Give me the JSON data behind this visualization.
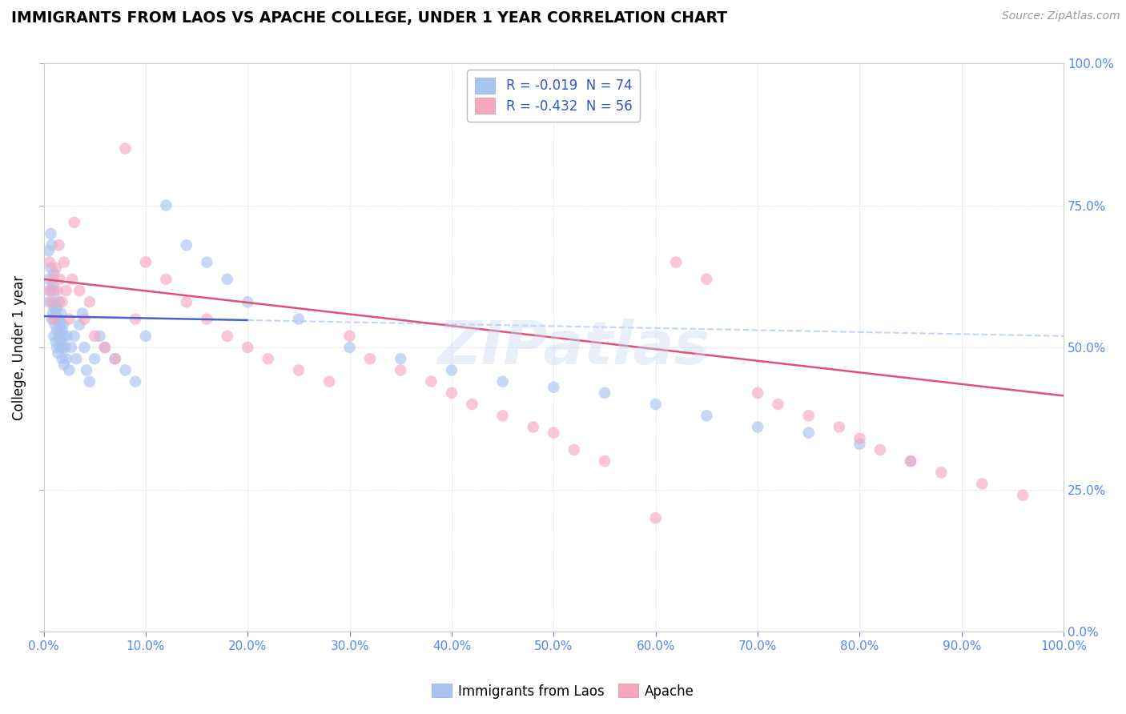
{
  "title": "IMMIGRANTS FROM LAOS VS APACHE COLLEGE, UNDER 1 YEAR CORRELATION CHART",
  "source": "Source: ZipAtlas.com",
  "ylabel": "College, Under 1 year",
  "legend_label1": "Immigrants from Laos",
  "legend_label2": "Apache",
  "r1": -0.019,
  "n1": 74,
  "r2": -0.432,
  "n2": 56,
  "color1": "#a8c4f0",
  "color2": "#f5a8c0",
  "trend_color1": "#4466cc",
  "trend_color2": "#e0507a",
  "trend_dash_color1": "#a8c4f0",
  "watermark": "ZIPatlas",
  "xlim": [
    0.0,
    1.0
  ],
  "ylim": [
    0.0,
    1.0
  ],
  "xticks": [
    0.0,
    0.1,
    0.2,
    0.3,
    0.4,
    0.5,
    0.6,
    0.7,
    0.8,
    0.9,
    1.0
  ],
  "yticks": [
    0.0,
    0.25,
    0.5,
    0.75,
    1.0
  ],
  "scatter1_x": [
    0.005,
    0.005,
    0.005,
    0.007,
    0.007,
    0.007,
    0.008,
    0.008,
    0.009,
    0.009,
    0.01,
    0.01,
    0.01,
    0.01,
    0.01,
    0.011,
    0.011,
    0.012,
    0.012,
    0.013,
    0.013,
    0.013,
    0.014,
    0.014,
    0.015,
    0.015,
    0.015,
    0.016,
    0.016,
    0.017,
    0.017,
    0.018,
    0.018,
    0.019,
    0.019,
    0.02,
    0.02,
    0.021,
    0.022,
    0.023,
    0.025,
    0.027,
    0.03,
    0.032,
    0.035,
    0.038,
    0.04,
    0.042,
    0.045,
    0.05,
    0.055,
    0.06,
    0.07,
    0.08,
    0.09,
    0.1,
    0.12,
    0.14,
    0.16,
    0.18,
    0.2,
    0.25,
    0.3,
    0.35,
    0.4,
    0.45,
    0.5,
    0.55,
    0.6,
    0.65,
    0.7,
    0.75,
    0.8,
    0.85
  ],
  "scatter1_y": [
    0.58,
    0.62,
    0.67,
    0.6,
    0.64,
    0.7,
    0.55,
    0.68,
    0.56,
    0.61,
    0.52,
    0.55,
    0.57,
    0.6,
    0.63,
    0.54,
    0.58,
    0.51,
    0.56,
    0.5,
    0.53,
    0.57,
    0.49,
    0.55,
    0.52,
    0.55,
    0.58,
    0.5,
    0.54,
    0.51,
    0.56,
    0.48,
    0.53,
    0.5,
    0.54,
    0.47,
    0.52,
    0.5,
    0.48,
    0.52,
    0.46,
    0.5,
    0.52,
    0.48,
    0.54,
    0.56,
    0.5,
    0.46,
    0.44,
    0.48,
    0.52,
    0.5,
    0.48,
    0.46,
    0.44,
    0.52,
    0.75,
    0.68,
    0.65,
    0.62,
    0.58,
    0.55,
    0.5,
    0.48,
    0.46,
    0.44,
    0.43,
    0.42,
    0.4,
    0.38,
    0.36,
    0.35,
    0.33,
    0.3
  ],
  "scatter2_x": [
    0.005,
    0.006,
    0.008,
    0.009,
    0.01,
    0.012,
    0.013,
    0.015,
    0.016,
    0.018,
    0.02,
    0.022,
    0.025,
    0.028,
    0.03,
    0.035,
    0.04,
    0.045,
    0.05,
    0.06,
    0.07,
    0.08,
    0.09,
    0.1,
    0.12,
    0.14,
    0.16,
    0.18,
    0.2,
    0.22,
    0.25,
    0.28,
    0.3,
    0.32,
    0.35,
    0.38,
    0.4,
    0.42,
    0.45,
    0.48,
    0.5,
    0.52,
    0.55,
    0.6,
    0.62,
    0.65,
    0.7,
    0.72,
    0.75,
    0.78,
    0.8,
    0.82,
    0.85,
    0.88,
    0.92,
    0.96
  ],
  "scatter2_y": [
    0.6,
    0.65,
    0.58,
    0.62,
    0.55,
    0.64,
    0.6,
    0.68,
    0.62,
    0.58,
    0.65,
    0.6,
    0.55,
    0.62,
    0.72,
    0.6,
    0.55,
    0.58,
    0.52,
    0.5,
    0.48,
    0.85,
    0.55,
    0.65,
    0.62,
    0.58,
    0.55,
    0.52,
    0.5,
    0.48,
    0.46,
    0.44,
    0.52,
    0.48,
    0.46,
    0.44,
    0.42,
    0.4,
    0.38,
    0.36,
    0.35,
    0.32,
    0.3,
    0.2,
    0.65,
    0.62,
    0.42,
    0.4,
    0.38,
    0.36,
    0.34,
    0.32,
    0.3,
    0.28,
    0.26,
    0.24
  ],
  "trend1_x0": 0.0,
  "trend1_y0": 0.555,
  "trend1_x1": 0.2,
  "trend1_y1": 0.548,
  "trend1_dash_x0": 0.2,
  "trend1_dash_y0": 0.548,
  "trend1_dash_x1": 1.0,
  "trend1_dash_y1": 0.52,
  "trend2_x0": 0.0,
  "trend2_y0": 0.62,
  "trend2_x1": 1.0,
  "trend2_y1": 0.415
}
